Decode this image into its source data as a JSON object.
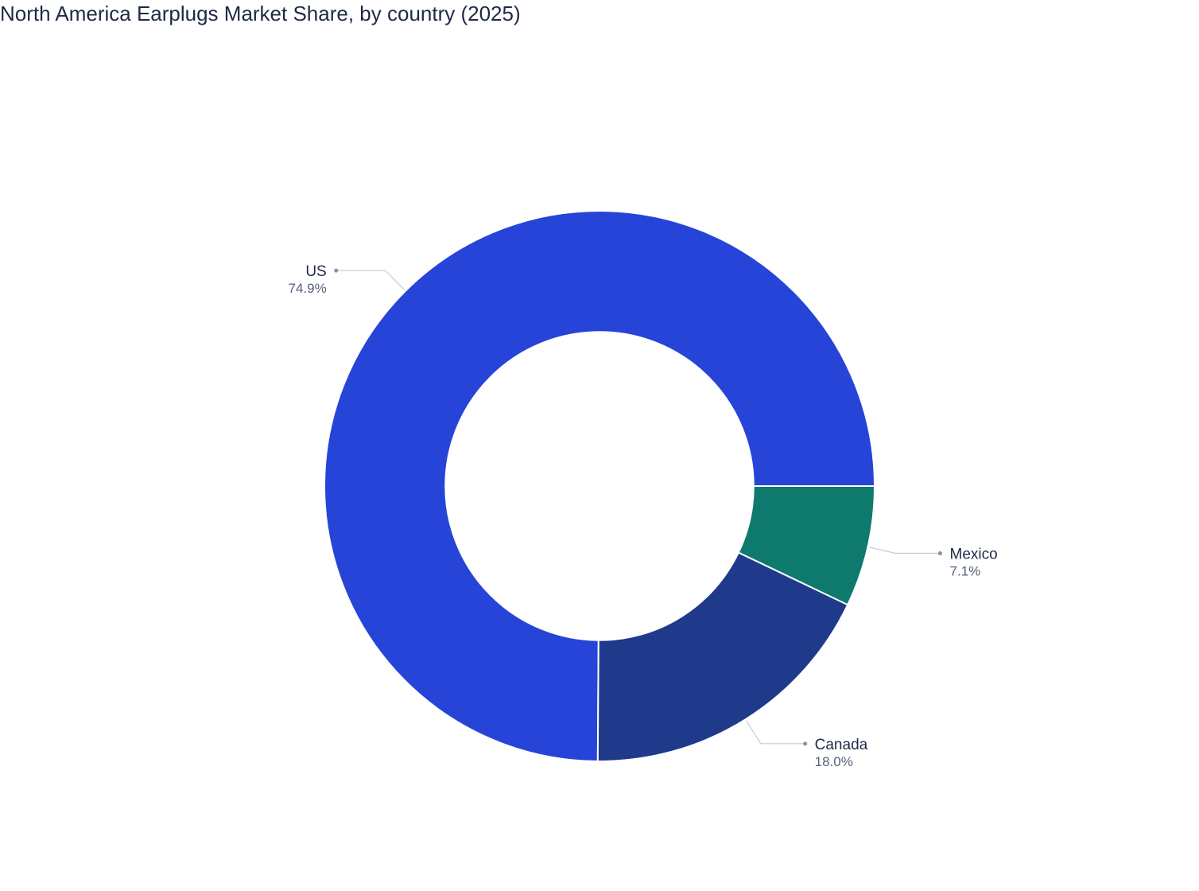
{
  "chart_data": {
    "type": "pie",
    "title": "North America Earplugs Market Share, by country (2025)",
    "hole": 0.56,
    "categories": [
      "US",
      "Mexico",
      "Canada"
    ],
    "values": [
      74.9,
      7.1,
      18.0
    ],
    "value_labels": [
      "74.9%",
      "7.1%",
      "18.0%"
    ],
    "colors": [
      "#2744D9",
      "#0E7A6D",
      "#1F3A8A"
    ],
    "legend": "none"
  }
}
